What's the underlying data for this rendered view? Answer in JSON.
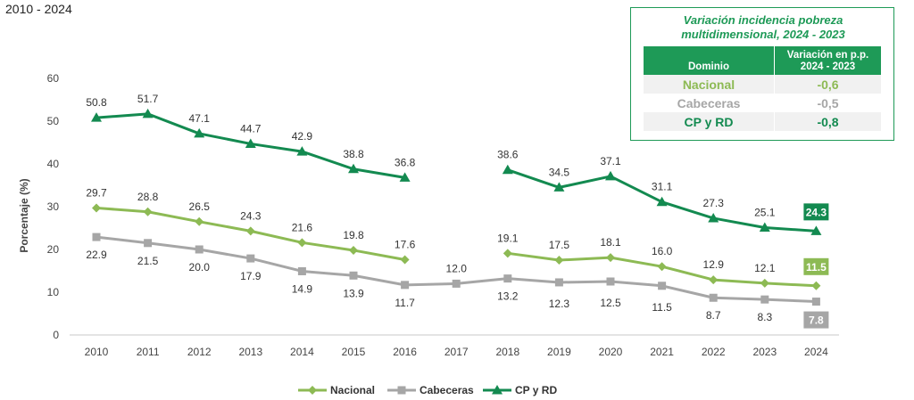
{
  "subtitle": "2010 - 2024",
  "colors": {
    "nacional": "#8dba54",
    "cabeceras": "#a6a6a6",
    "cpyrd": "#138a50",
    "box_border": "#1e9a57"
  },
  "chart_data": {
    "type": "line",
    "x": [
      2010,
      2011,
      2012,
      2013,
      2014,
      2015,
      2016,
      2017,
      2018,
      2019,
      2020,
      2021,
      2022,
      2023,
      2024
    ],
    "ylabel": "Porcentaje (%)",
    "xlabel": "",
    "ylim": [
      0,
      60
    ],
    "yticks": [
      0,
      10,
      20,
      30,
      40,
      50,
      60
    ],
    "grid": false,
    "legend_position": "bottom-center",
    "series": [
      {
        "name": "Nacional",
        "key": "nacional",
        "marker": "diamond",
        "values": [
          29.7,
          28.8,
          26.5,
          24.3,
          21.6,
          19.8,
          17.6,
          null,
          19.1,
          17.5,
          18.1,
          16.0,
          12.9,
          12.1,
          11.5
        ],
        "labels": [
          "29.7",
          "28.8",
          "26.5",
          "24.3",
          "21.6",
          "19.8",
          "17.6",
          null,
          "19.1",
          "17.5",
          "18.1",
          "16.0",
          "12.9",
          "12.1",
          "11.5"
        ]
      },
      {
        "name": "Cabeceras",
        "key": "cabeceras",
        "marker": "square",
        "values": [
          22.9,
          21.5,
          20.0,
          17.9,
          14.9,
          13.9,
          11.7,
          12.0,
          13.2,
          12.3,
          12.5,
          11.5,
          8.7,
          8.3,
          7.8
        ],
        "labels": [
          "22.9",
          "21.5",
          "20.0",
          "17.9",
          "14.9",
          "13.9",
          "11.7",
          "12.0",
          "13.2",
          "12.3",
          "12.5",
          "11.5",
          "8.7",
          "8.3",
          "7.8"
        ]
      },
      {
        "name": "CP y RD",
        "key": "cpyrd",
        "marker": "triangle",
        "values": [
          50.8,
          51.7,
          47.1,
          44.7,
          42.9,
          38.8,
          36.8,
          null,
          38.6,
          34.5,
          37.1,
          31.1,
          27.3,
          25.1,
          24.3
        ],
        "labels": [
          "50.8",
          "51.7",
          "47.1",
          "44.7",
          "42.9",
          "38.8",
          "36.8",
          null,
          "38.6",
          "34.5",
          "37.1",
          "31.1",
          "27.3",
          "25.1",
          "24.3"
        ]
      }
    ]
  },
  "summary_box": {
    "title_line1": "Variación incidencia pobreza",
    "title_line2": "multidimensional, 2024 - 2023",
    "col_dominio": "Dominio",
    "col_variacion_line1": "Variación en p.p.",
    "col_variacion_line2": "2024 - 2023",
    "rows": [
      {
        "dominio": "Nacional",
        "valor": "-0,6",
        "color": "#8dba54"
      },
      {
        "dominio": "Cabeceras",
        "valor": "-0,5",
        "color": "#a6a6a6"
      },
      {
        "dominio": "CP y RD",
        "valor": "-0,8",
        "color": "#138a50"
      }
    ]
  }
}
